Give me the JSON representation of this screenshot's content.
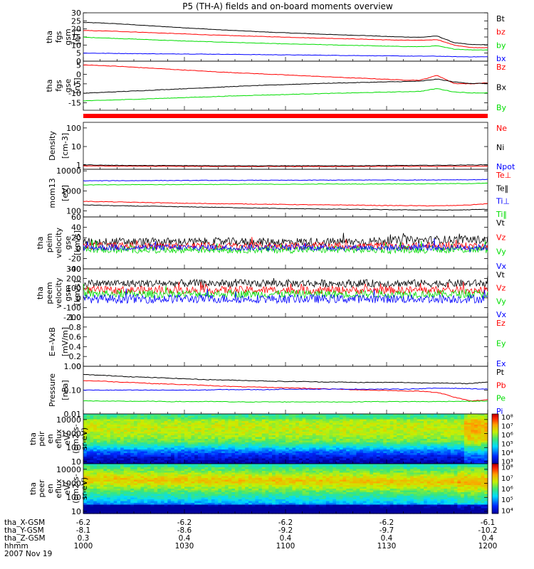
{
  "title": "P5 (TH-A) fields and on-board moments overview",
  "colors": {
    "black": "#000000",
    "red": "#ff0000",
    "green": "#00dd00",
    "blue": "#0000ff"
  },
  "chart_data": [
    {
      "type": "line",
      "id": "p1",
      "ylabel": [
        "tha",
        "fgs",
        "gsm",
        "[nT]"
      ],
      "ylim": [
        0,
        30
      ],
      "yticks": [
        0,
        5,
        10,
        15,
        20,
        25,
        30
      ],
      "series": [
        {
          "name": "Bt",
          "color": "black",
          "values": [
            24,
            23.7,
            23.2,
            22.6,
            21.9,
            21.3,
            20.7,
            20.1,
            19.5,
            19.0,
            18.5,
            18.0,
            17.6,
            17.2,
            16.8,
            16.4,
            16.1,
            15.8,
            15.3,
            15.0,
            14.8,
            15.6,
            11.5,
            10.3,
            10.2
          ]
        },
        {
          "name": "bz",
          "color": "red",
          "values": [
            19,
            18.8,
            18.5,
            18.1,
            17.7,
            17.3,
            16.9,
            16.5,
            16.1,
            15.8,
            15.5,
            15.2,
            14.9,
            14.6,
            14.3,
            14.1,
            13.8,
            13.5,
            13.2,
            13.0,
            12.9,
            13.4,
            10.0,
            8.4,
            8.4
          ]
        },
        {
          "name": "by",
          "color": "green",
          "values": [
            14.8,
            14.5,
            14.1,
            13.7,
            13.3,
            12.9,
            12.5,
            12.2,
            11.9,
            11.6,
            11.3,
            11.0,
            10.7,
            10.5,
            10.3,
            10.0,
            9.8,
            9.6,
            9.3,
            9.1,
            9.0,
            9.5,
            7.5,
            7.0,
            7.0
          ]
        },
        {
          "name": "bx",
          "color": "blue",
          "values": [
            5.0,
            4.9,
            4.8,
            4.7,
            4.6,
            4.5,
            4.5,
            4.4,
            4.3,
            4.2,
            4.1,
            4.0,
            3.9,
            3.8,
            3.7,
            3.6,
            3.5,
            3.4,
            3.3,
            3.2,
            3.1,
            3.1,
            2.8,
            2.7,
            2.7
          ]
        }
      ]
    },
    {
      "type": "line",
      "id": "p2",
      "ylabel": [
        "tha",
        "fgs",
        "gse",
        "[nT]"
      ],
      "ylim": [
        -19,
        7
      ],
      "yticks": [
        -15,
        -10,
        -5,
        0,
        5
      ],
      "series": [
        {
          "name": "Bz",
          "color": "red",
          "values": [
            5,
            4.7,
            4.3,
            3.8,
            3.3,
            2.8,
            2.3,
            1.8,
            1.3,
            0.9,
            0.5,
            0.1,
            -0.3,
            -0.7,
            -1.1,
            -1.5,
            -1.9,
            -2.2,
            -2.6,
            -3.0,
            -3.1,
            -0.5,
            -4.8,
            -5.0,
            -4.5
          ]
        },
        {
          "name": "Bx",
          "color": "black",
          "values": [
            -10,
            -9.6,
            -9.2,
            -8.8,
            -8.4,
            -8.0,
            -7.6,
            -7.2,
            -6.8,
            -6.4,
            -6.0,
            -5.7,
            -5.4,
            -5.1,
            -4.8,
            -4.6,
            -4.4,
            -4.2,
            -4.0,
            -3.8,
            -3.6,
            -2.5,
            -4.0,
            -4.8,
            -4.8
          ]
        },
        {
          "name": "By",
          "color": "green",
          "values": [
            -14,
            -13.8,
            -13.5,
            -13.2,
            -12.9,
            -12.6,
            -12.3,
            -12.0,
            -11.7,
            -11.4,
            -11.1,
            -10.9,
            -10.7,
            -10.4,
            -10.2,
            -10.0,
            -9.8,
            -9.6,
            -9.4,
            -9.2,
            -9.0,
            -7.5,
            -9.3,
            -9.8,
            -9.8
          ]
        }
      ]
    },
    {
      "type": "line",
      "id": "p3",
      "scale": "log",
      "ylabel": [
        "Density",
        "[cm-3]"
      ],
      "ylim": [
        0.6,
        200
      ],
      "yticks": [
        1,
        10,
        100
      ],
      "ytick_labels": [
        "1",
        "10",
        "100"
      ],
      "series": [
        {
          "name": "Ne",
          "color": "red",
          "values": [
            0.9,
            0.9,
            0.88,
            0.88,
            0.87,
            0.87,
            0.86,
            0.86,
            0.85,
            0.85,
            0.85,
            0.85,
            0.84,
            0.84,
            0.84,
            0.84,
            0.84,
            0.85,
            0.85,
            0.86,
            0.86,
            0.86,
            0.87,
            0.87,
            0.88
          ]
        },
        {
          "name": "Ni",
          "color": "black",
          "values": [
            1.05,
            1.0,
            0.98,
            0.96,
            0.95,
            0.95,
            0.94,
            0.94,
            0.93,
            0.93,
            0.92,
            0.92,
            0.92,
            0.92,
            0.92,
            0.93,
            0.93,
            0.94,
            0.95,
            0.96,
            0.97,
            0.98,
            1.0,
            1.02,
            1.05
          ]
        },
        {
          "name": "Npot",
          "color": "blue",
          "values": []
        }
      ]
    },
    {
      "type": "line",
      "id": "p4",
      "scale": "log",
      "ylabel": [
        "mom13",
        "[eV]"
      ],
      "ylim": [
        50,
        12000
      ],
      "yticks": [
        100,
        1000,
        10000
      ],
      "ytick_labels": [
        "100",
        "1000",
        "10000"
      ],
      "series": [
        {
          "name": "Te⊥",
          "color": "red",
          "values": [
            300,
            290,
            280,
            270,
            260,
            250,
            240,
            235,
            230,
            225,
            220,
            215,
            210,
            205,
            200,
            200,
            195,
            190,
            185,
            185,
            180,
            180,
            185,
            200,
            230
          ]
        },
        {
          "name": "Te‖",
          "color": "black",
          "values": [
            200,
            190,
            180,
            175,
            170,
            165,
            160,
            155,
            150,
            145,
            140,
            135,
            130,
            128,
            125,
            122,
            120,
            118,
            115,
            113,
            112,
            110,
            110,
            115,
            120
          ]
        },
        {
          "name": "Ti⊥",
          "color": "blue",
          "values": [
            3200,
            3200,
            3250,
            3250,
            3300,
            3300,
            3300,
            3350,
            3350,
            3350,
            3400,
            3400,
            3400,
            3400,
            3450,
            3450,
            3450,
            3500,
            3500,
            3500,
            3500,
            3550,
            3600,
            3600,
            3700
          ]
        },
        {
          "name": "Ti‖",
          "color": "green",
          "values": [
            2000,
            2000,
            2000,
            2050,
            2050,
            2050,
            2100,
            2100,
            2100,
            2100,
            2150,
            2150,
            2150,
            2150,
            2200,
            2200,
            2200,
            2200,
            2250,
            2250,
            2250,
            2300,
            2300,
            2350,
            2400
          ]
        }
      ]
    },
    {
      "type": "line",
      "id": "p5",
      "noisy": true,
      "ylabel": [
        "tha",
        "peim",
        "velocity",
        "gse",
        "[km/s]"
      ],
      "ylim": [
        -40,
        60
      ],
      "yticks": [
        -40,
        -20,
        0,
        20,
        40,
        60
      ],
      "series": [
        {
          "name": "Vt",
          "color": "black",
          "values": [
            12,
            12,
            12,
            12,
            12,
            12,
            12,
            12,
            12,
            12,
            12,
            12,
            12,
            12,
            12,
            12,
            12,
            13,
            14,
            15,
            15,
            16,
            16,
            16,
            16
          ],
          "noise": 8
        },
        {
          "name": "Vz",
          "color": "red",
          "values": [
            4,
            4,
            4,
            4,
            4,
            4,
            4,
            4,
            4,
            4,
            4,
            4,
            4,
            4,
            4,
            4,
            4,
            4,
            4,
            4,
            4,
            4,
            4,
            4,
            4
          ],
          "noise": 7
        },
        {
          "name": "Vy",
          "color": "green",
          "values": [
            -3,
            -3,
            -3,
            -3,
            -3,
            -3,
            -3,
            -3,
            -3,
            -3,
            -3,
            -3,
            -3,
            -3,
            -3,
            -3,
            -3,
            -3,
            -3,
            -3,
            -3,
            -3,
            -3,
            -3,
            -3
          ],
          "noise": 7
        },
        {
          "name": "Vx",
          "color": "blue",
          "values": [
            1,
            1,
            1,
            1,
            1,
            1,
            1,
            1,
            1,
            1,
            1,
            1,
            1,
            1,
            1,
            1,
            1,
            1,
            1,
            1,
            1,
            1,
            1,
            1,
            1
          ],
          "noise": 6
        }
      ]
    },
    {
      "type": "line",
      "id": "p6",
      "noisy": true,
      "ylabel": [
        "tha",
        "peem",
        "velocity",
        "gsm",
        "[km/s]"
      ],
      "ylim": [
        -200,
        300
      ],
      "yticks": [
        -200,
        -100,
        0,
        100,
        200,
        300
      ],
      "ytick_labels": [
        "-200",
        "-100",
        "0",
        "100",
        "200",
        "300"
      ],
      "series": [
        {
          "name": "Vt",
          "color": "black",
          "values": [
            150,
            150,
            150,
            150,
            150,
            150,
            150,
            150,
            150,
            150,
            150,
            150,
            150,
            150,
            150,
            150,
            150,
            150,
            150,
            150,
            150,
            150,
            150,
            150,
            150
          ],
          "noise": 40
        },
        {
          "name": "Vz",
          "color": "red",
          "values": [
            80,
            80,
            80,
            80,
            80,
            80,
            80,
            80,
            80,
            80,
            80,
            80,
            80,
            80,
            80,
            80,
            80,
            80,
            80,
            80,
            80,
            80,
            80,
            80,
            80
          ],
          "noise": 40
        },
        {
          "name": "Vy",
          "color": "green",
          "values": [
            40,
            40,
            40,
            40,
            40,
            40,
            40,
            40,
            40,
            40,
            40,
            40,
            40,
            40,
            40,
            40,
            40,
            40,
            40,
            40,
            40,
            40,
            40,
            40,
            40
          ],
          "noise": 40
        },
        {
          "name": "Vx",
          "color": "blue",
          "values": [
            -10,
            -10,
            -10,
            -10,
            -10,
            -10,
            -10,
            -10,
            -10,
            -10,
            -10,
            -10,
            -10,
            -10,
            -10,
            -10,
            -10,
            -10,
            -10,
            -10,
            -10,
            -10,
            -10,
            -10,
            -10
          ],
          "noise": 45
        }
      ]
    },
    {
      "type": "line",
      "id": "p7",
      "ylabel": [
        "E=-VxB",
        "[mV/m]"
      ],
      "ylim": [
        0,
        1
      ],
      "yticks": [
        0,
        0.2,
        0.4,
        0.6,
        0.8,
        1.0
      ],
      "ytick_labels": [
        "0",
        "0.2",
        "0.4",
        "0.6",
        "0.8",
        "1.0"
      ],
      "series": [
        {
          "name": "Ez",
          "color": "red",
          "values": []
        },
        {
          "name": "Ey",
          "color": "green",
          "values": []
        },
        {
          "name": "Ex",
          "color": "blue",
          "values": []
        }
      ]
    },
    {
      "type": "line",
      "id": "p8",
      "scale": "log",
      "ylabel": [
        "Pressure",
        "[nPa]"
      ],
      "ylim": [
        0.01,
        1
      ],
      "yticks": [
        0.01,
        0.1,
        1
      ],
      "ytick_labels": [
        "0.01",
        "0.10",
        "1.00"
      ],
      "series": [
        {
          "name": "Pt",
          "color": "black",
          "values": [
            0.45,
            0.42,
            0.39,
            0.36,
            0.34,
            0.32,
            0.3,
            0.28,
            0.27,
            0.26,
            0.25,
            0.24,
            0.23,
            0.23,
            0.22,
            0.22,
            0.21,
            0.21,
            0.21,
            0.21,
            0.2,
            0.2,
            0.19,
            0.19,
            0.22
          ]
        },
        {
          "name": "Pb",
          "color": "red",
          "values": [
            0.25,
            0.24,
            0.22,
            0.21,
            0.19,
            0.18,
            0.17,
            0.16,
            0.15,
            0.14,
            0.135,
            0.13,
            0.125,
            0.12,
            0.115,
            0.11,
            0.105,
            0.1,
            0.097,
            0.093,
            0.09,
            0.08,
            0.05,
            0.035,
            0.04
          ]
        },
        {
          "name": "Pe",
          "color": "green",
          "values": [
            0.035,
            0.035,
            0.034,
            0.034,
            0.034,
            0.033,
            0.033,
            0.033,
            0.033,
            0.032,
            0.032,
            0.032,
            0.032,
            0.032,
            0.032,
            0.032,
            0.032,
            0.033,
            0.033,
            0.033,
            0.033,
            0.033,
            0.034,
            0.034,
            0.035
          ]
        },
        {
          "name": "Pi",
          "color": "blue",
          "values": [
            0.1,
            0.1,
            0.1,
            0.1,
            0.1,
            0.1,
            0.1,
            0.1,
            0.105,
            0.105,
            0.105,
            0.105,
            0.11,
            0.11,
            0.11,
            0.11,
            0.11,
            0.11,
            0.11,
            0.11,
            0.115,
            0.12,
            0.12,
            0.115,
            0.11
          ]
        }
      ]
    },
    {
      "type": "heatmap",
      "id": "p9",
      "scale": "log",
      "ylabel": [
        "tha",
        "peir",
        "en",
        "eflux",
        "eV/",
        "(cm2-s-",
        "sr-eV)"
      ],
      "ylim": [
        7,
        25000
      ],
      "yticks": [
        10,
        100,
        1000,
        10000
      ],
      "ytick_labels": [
        "10",
        "100",
        "1000",
        "10000"
      ],
      "zlim": [
        1000,
        1000000000
      ],
      "ztick_labels": [
        "10³",
        "10⁴",
        "10⁵",
        "10⁶",
        "10⁷",
        "10⁸"
      ]
    },
    {
      "type": "heatmap",
      "id": "p10",
      "scale": "log",
      "ylabel": [
        "tha",
        "peer",
        "en",
        "eflux",
        "eV/",
        "(cm2-s-",
        "sr-eV)"
      ],
      "ylim": [
        7,
        25000
      ],
      "yticks": [
        10,
        100,
        1000,
        10000
      ],
      "ytick_labels": [
        "10",
        "100",
        "1000",
        "10000"
      ],
      "zlim": [
        3000,
        100000000
      ],
      "ztick_labels": [
        "10⁴",
        "10⁵",
        "10⁶",
        "10⁷",
        "10⁸"
      ]
    }
  ],
  "x_axis": {
    "ticks": [
      {
        "X": "-6.2",
        "Y": "-8.1",
        "Z": "0.3",
        "hhmm": "1000"
      },
      {
        "X": "-6.2",
        "Y": "-8.6",
        "Z": "0.4",
        "hhmm": "1030"
      },
      {
        "X": "-6.2",
        "Y": "-9.2",
        "Z": "0.4",
        "hhmm": "1100"
      },
      {
        "X": "-6.2",
        "Y": "-9.7",
        "Z": "0.4",
        "hhmm": "1130"
      },
      {
        "X": "-6.1",
        "Y": "-10.2",
        "Z": "0.4",
        "hhmm": "1200"
      }
    ],
    "row_labels": [
      "tha_X-GSM",
      "tha_Y-GSM",
      "tha_Z-GSM",
      "hhmm"
    ],
    "date": "2007 Nov 19"
  }
}
